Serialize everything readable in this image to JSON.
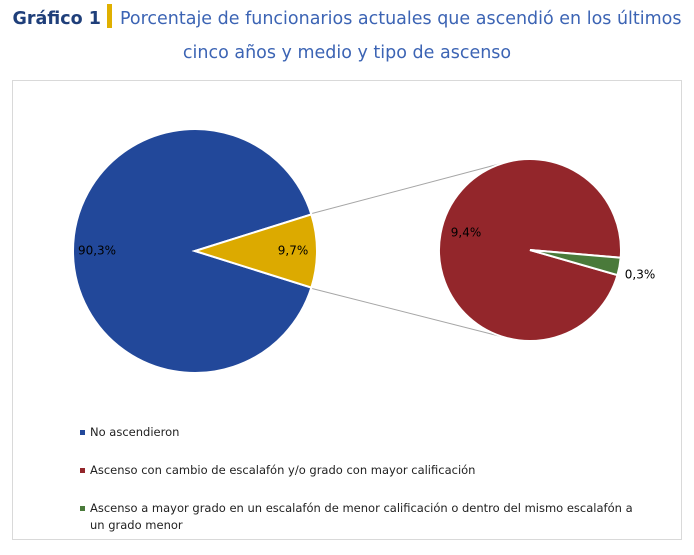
{
  "chart_data": {
    "type": "pie",
    "figure_label": "Gráfico 1",
    "title": "Porcentaje de funcionarios actuales que ascendió en los últimos cinco años y medio y tipo de ascenso",
    "categories": [
      "No ascendieron",
      null
    ],
    "values": [
      90.3,
      9.7
    ],
    "value_labels": [
      "90,3%",
      "9,7%"
    ],
    "colors": [
      "#22489a",
      "#dcaa00"
    ],
    "secondary": {
      "categories": [
        "Ascenso con cambio de escalafón y/o grado con mayor calificación",
        "Ascenso a mayor grado en un escalafón de menor calificación o dentro del mismo escalafón a un grado menor"
      ],
      "values": [
        9.4,
        0.3
      ],
      "value_labels": [
        "9,4%",
        "0,3%"
      ],
      "colors": [
        "#93262b",
        "#4a7a3a"
      ]
    }
  }
}
